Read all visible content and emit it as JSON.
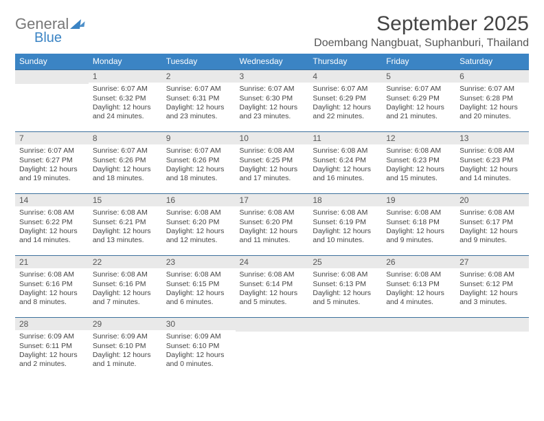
{
  "logo": {
    "word1": "General",
    "word2": "Blue"
  },
  "title": "September 2025",
  "location": "Doembang Nangbuat, Suphanburi, Thailand",
  "brand_color": "#3b84c4",
  "strip_bg": "#e9e9e9",
  "days": [
    "Sunday",
    "Monday",
    "Tuesday",
    "Wednesday",
    "Thursday",
    "Friday",
    "Saturday"
  ],
  "weeks": [
    [
      null,
      {
        "d": "1",
        "sr": "Sunrise: 6:07 AM",
        "ss": "Sunset: 6:32 PM",
        "dl1": "Daylight: 12 hours",
        "dl2": "and 24 minutes."
      },
      {
        "d": "2",
        "sr": "Sunrise: 6:07 AM",
        "ss": "Sunset: 6:31 PM",
        "dl1": "Daylight: 12 hours",
        "dl2": "and 23 minutes."
      },
      {
        "d": "3",
        "sr": "Sunrise: 6:07 AM",
        "ss": "Sunset: 6:30 PM",
        "dl1": "Daylight: 12 hours",
        "dl2": "and 23 minutes."
      },
      {
        "d": "4",
        "sr": "Sunrise: 6:07 AM",
        "ss": "Sunset: 6:29 PM",
        "dl1": "Daylight: 12 hours",
        "dl2": "and 22 minutes."
      },
      {
        "d": "5",
        "sr": "Sunrise: 6:07 AM",
        "ss": "Sunset: 6:29 PM",
        "dl1": "Daylight: 12 hours",
        "dl2": "and 21 minutes."
      },
      {
        "d": "6",
        "sr": "Sunrise: 6:07 AM",
        "ss": "Sunset: 6:28 PM",
        "dl1": "Daylight: 12 hours",
        "dl2": "and 20 minutes."
      }
    ],
    [
      {
        "d": "7",
        "sr": "Sunrise: 6:07 AM",
        "ss": "Sunset: 6:27 PM",
        "dl1": "Daylight: 12 hours",
        "dl2": "and 19 minutes."
      },
      {
        "d": "8",
        "sr": "Sunrise: 6:07 AM",
        "ss": "Sunset: 6:26 PM",
        "dl1": "Daylight: 12 hours",
        "dl2": "and 18 minutes."
      },
      {
        "d": "9",
        "sr": "Sunrise: 6:07 AM",
        "ss": "Sunset: 6:26 PM",
        "dl1": "Daylight: 12 hours",
        "dl2": "and 18 minutes."
      },
      {
        "d": "10",
        "sr": "Sunrise: 6:08 AM",
        "ss": "Sunset: 6:25 PM",
        "dl1": "Daylight: 12 hours",
        "dl2": "and 17 minutes."
      },
      {
        "d": "11",
        "sr": "Sunrise: 6:08 AM",
        "ss": "Sunset: 6:24 PM",
        "dl1": "Daylight: 12 hours",
        "dl2": "and 16 minutes."
      },
      {
        "d": "12",
        "sr": "Sunrise: 6:08 AM",
        "ss": "Sunset: 6:23 PM",
        "dl1": "Daylight: 12 hours",
        "dl2": "and 15 minutes."
      },
      {
        "d": "13",
        "sr": "Sunrise: 6:08 AM",
        "ss": "Sunset: 6:23 PM",
        "dl1": "Daylight: 12 hours",
        "dl2": "and 14 minutes."
      }
    ],
    [
      {
        "d": "14",
        "sr": "Sunrise: 6:08 AM",
        "ss": "Sunset: 6:22 PM",
        "dl1": "Daylight: 12 hours",
        "dl2": "and 14 minutes."
      },
      {
        "d": "15",
        "sr": "Sunrise: 6:08 AM",
        "ss": "Sunset: 6:21 PM",
        "dl1": "Daylight: 12 hours",
        "dl2": "and 13 minutes."
      },
      {
        "d": "16",
        "sr": "Sunrise: 6:08 AM",
        "ss": "Sunset: 6:20 PM",
        "dl1": "Daylight: 12 hours",
        "dl2": "and 12 minutes."
      },
      {
        "d": "17",
        "sr": "Sunrise: 6:08 AM",
        "ss": "Sunset: 6:20 PM",
        "dl1": "Daylight: 12 hours",
        "dl2": "and 11 minutes."
      },
      {
        "d": "18",
        "sr": "Sunrise: 6:08 AM",
        "ss": "Sunset: 6:19 PM",
        "dl1": "Daylight: 12 hours",
        "dl2": "and 10 minutes."
      },
      {
        "d": "19",
        "sr": "Sunrise: 6:08 AM",
        "ss": "Sunset: 6:18 PM",
        "dl1": "Daylight: 12 hours",
        "dl2": "and 9 minutes."
      },
      {
        "d": "20",
        "sr": "Sunrise: 6:08 AM",
        "ss": "Sunset: 6:17 PM",
        "dl1": "Daylight: 12 hours",
        "dl2": "and 9 minutes."
      }
    ],
    [
      {
        "d": "21",
        "sr": "Sunrise: 6:08 AM",
        "ss": "Sunset: 6:16 PM",
        "dl1": "Daylight: 12 hours",
        "dl2": "and 8 minutes."
      },
      {
        "d": "22",
        "sr": "Sunrise: 6:08 AM",
        "ss": "Sunset: 6:16 PM",
        "dl1": "Daylight: 12 hours",
        "dl2": "and 7 minutes."
      },
      {
        "d": "23",
        "sr": "Sunrise: 6:08 AM",
        "ss": "Sunset: 6:15 PM",
        "dl1": "Daylight: 12 hours",
        "dl2": "and 6 minutes."
      },
      {
        "d": "24",
        "sr": "Sunrise: 6:08 AM",
        "ss": "Sunset: 6:14 PM",
        "dl1": "Daylight: 12 hours",
        "dl2": "and 5 minutes."
      },
      {
        "d": "25",
        "sr": "Sunrise: 6:08 AM",
        "ss": "Sunset: 6:13 PM",
        "dl1": "Daylight: 12 hours",
        "dl2": "and 5 minutes."
      },
      {
        "d": "26",
        "sr": "Sunrise: 6:08 AM",
        "ss": "Sunset: 6:13 PM",
        "dl1": "Daylight: 12 hours",
        "dl2": "and 4 minutes."
      },
      {
        "d": "27",
        "sr": "Sunrise: 6:08 AM",
        "ss": "Sunset: 6:12 PM",
        "dl1": "Daylight: 12 hours",
        "dl2": "and 3 minutes."
      }
    ],
    [
      {
        "d": "28",
        "sr": "Sunrise: 6:09 AM",
        "ss": "Sunset: 6:11 PM",
        "dl1": "Daylight: 12 hours",
        "dl2": "and 2 minutes."
      },
      {
        "d": "29",
        "sr": "Sunrise: 6:09 AM",
        "ss": "Sunset: 6:10 PM",
        "dl1": "Daylight: 12 hours",
        "dl2": "and 1 minute."
      },
      {
        "d": "30",
        "sr": "Sunrise: 6:09 AM",
        "ss": "Sunset: 6:10 PM",
        "dl1": "Daylight: 12 hours",
        "dl2": "and 0 minutes."
      },
      null,
      null,
      null,
      null
    ]
  ]
}
